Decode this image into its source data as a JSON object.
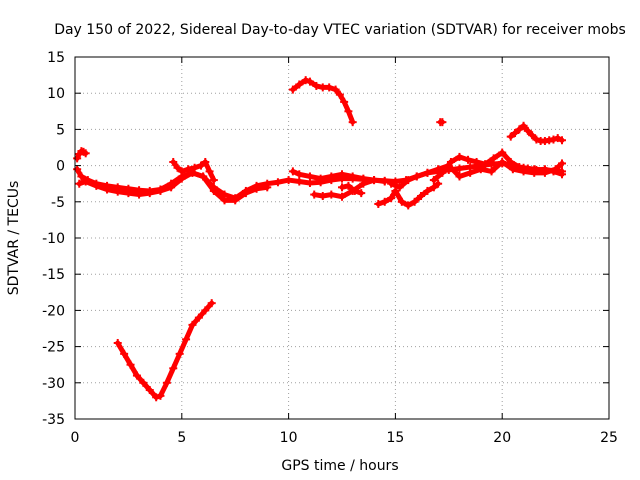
{
  "chart_data": {
    "type": "scatter",
    "title": "Day 150 of 2022, Sidereal Day-to-day VTEC variation (SDTVAR) for receiver mobs",
    "xlabel": "GPS time / hours",
    "ylabel": "SDTVAR / TECUs",
    "xlim": [
      0,
      25
    ],
    "ylim": [
      -35,
      15
    ],
    "x_ticks": [
      0,
      5,
      10,
      15,
      20,
      25
    ],
    "y_ticks": [
      15,
      10,
      5,
      0,
      -5,
      -10,
      -15,
      -20,
      -25,
      -30,
      -35
    ],
    "grid": true,
    "grid_style": "dotted",
    "marker": "+",
    "series": [
      {
        "name": "SDTVAR",
        "color": "#ff0000",
        "tracks": [
          {
            "x": [
              0.1,
              0.2,
              0.3,
              0.4,
              0.5
            ],
            "y": [
              1.0,
              1.6,
              2.0,
              1.9,
              1.7
            ]
          },
          {
            "x": [
              0.1,
              0.3,
              0.6,
              1.0,
              1.5,
              2.0,
              2.5,
              3.0,
              3.5,
              4.0,
              4.5,
              5.0,
              5.5,
              6.0,
              6.5,
              7.0,
              7.5,
              8.0,
              8.5,
              9.0,
              9.5,
              10.0,
              10.5,
              11.0,
              11.5,
              12.0,
              12.5,
              13.0,
              13.5,
              14.0,
              14.5,
              15.0,
              15.5,
              16.0,
              16.5,
              17.0,
              17.5,
              18.0,
              18.5,
              19.0,
              19.5,
              20.0,
              20.5,
              21.0,
              21.5,
              22.0,
              22.5,
              22.8
            ],
            "y": [
              -0.5,
              -1.5,
              -2.0,
              -2.5,
              -2.8,
              -3.0,
              -3.2,
              -3.4,
              -3.5,
              -3.3,
              -2.5,
              -1.5,
              -1.0,
              -1.5,
              -3.0,
              -4.0,
              -4.5,
              -3.5,
              -2.8,
              -2.5,
              -2.3,
              -2.0,
              -2.2,
              -2.4,
              -2.3,
              -2.0,
              -1.8,
              -1.8,
              -1.9,
              -2.0,
              -2.1,
              -2.2,
              -2.0,
              -1.5,
              -1.0,
              -0.8,
              -0.6,
              -0.4,
              -0.2,
              0.0,
              0.2,
              0.3,
              0.0,
              -0.3,
              -0.5,
              -0.6,
              -0.7,
              -0.8
            ]
          },
          {
            "x": [
              0.2,
              0.5,
              1.0,
              1.5,
              2.0,
              2.5,
              3.0,
              3.5,
              4.0,
              4.5,
              5.0,
              5.5,
              6.0,
              6.5,
              7.0,
              7.5,
              8.0,
              8.5,
              9.0
            ],
            "y": [
              -2.5,
              -2.2,
              -2.8,
              -3.3,
              -3.6,
              -3.8,
              -4.0,
              -3.8,
              -3.5,
              -3.0,
              -1.8,
              -1.0,
              -1.5,
              -3.5,
              -4.8,
              -4.8,
              -3.8,
              -3.2,
              -3.0
            ]
          },
          {
            "x": [
              4.6,
              4.8,
              5.0,
              5.3,
              5.6,
              5.9,
              6.1,
              6.3,
              6.5
            ],
            "y": [
              0.5,
              -0.3,
              -0.8,
              -0.5,
              -0.3,
              0.0,
              0.5,
              -0.8,
              -2.0
            ]
          },
          {
            "x": [
              2.0,
              2.3,
              2.6,
              2.9,
              3.2,
              3.5,
              3.8,
              4.0,
              4.3,
              4.6,
              4.9,
              5.2,
              5.5,
              5.8,
              6.1,
              6.4
            ],
            "y": [
              -24.5,
              -26.0,
              -27.5,
              -29.0,
              -30.0,
              -31.0,
              -32.0,
              -31.8,
              -30.0,
              -28.0,
              -26.0,
              -24.0,
              -22.0,
              -21.0,
              -20.0,
              -19.0
            ]
          },
          {
            "x": [
              10.2,
              10.5,
              10.8,
              11.0,
              11.3,
              11.6,
              11.9,
              12.2,
              12.4,
              12.6,
              12.8,
              13.0
            ],
            "y": [
              10.5,
              11.2,
              11.8,
              11.6,
              11.0,
              10.8,
              10.8,
              10.5,
              9.8,
              8.8,
              7.5,
              6.0
            ]
          },
          {
            "x": [
              10.2,
              10.5,
              11.0,
              11.5,
              12.0,
              12.5,
              13.0,
              13.5,
              14.0,
              14.5
            ],
            "y": [
              -0.8,
              -1.2,
              -1.5,
              -1.8,
              -1.5,
              -1.2,
              -1.5,
              -1.8,
              -2.0,
              -2.2
            ]
          },
          {
            "x": [
              11.2,
              11.6,
              12.0,
              12.5,
              13.0,
              13.5,
              14.0
            ],
            "y": [
              -4.0,
              -4.2,
              -4.0,
              -4.3,
              -3.5,
              -2.5,
              -2.0
            ]
          },
          {
            "x": [
              12.5,
              12.8,
              13.1,
              13.4
            ],
            "y": [
              -3.0,
              -2.8,
              -3.5,
              -3.8
            ]
          },
          {
            "x": [
              14.2,
              14.5,
              14.8,
              15.0,
              15.3,
              15.6,
              15.9,
              16.2,
              16.5,
              16.8,
              17.0
            ],
            "y": [
              -5.3,
              -5.0,
              -4.5,
              -3.5,
              -5.0,
              -5.5,
              -5.0,
              -4.2,
              -3.5,
              -3.0,
              -2.5
            ]
          },
          {
            "x": [
              14.8,
              15.2,
              15.6,
              16.0,
              16.5,
              17.0,
              17.5,
              18.0,
              18.5,
              19.0,
              19.5,
              20.0,
              20.5,
              21.0,
              21.5,
              22.0,
              22.5,
              22.8
            ],
            "y": [
              -2.5,
              -3.0,
              -2.0,
              -1.5,
              -1.0,
              -0.5,
              0.0,
              -1.5,
              -1.0,
              -0.5,
              -0.8,
              0.5,
              -0.5,
              -0.8,
              -1.0,
              -1.0,
              -0.5,
              0.3
            ]
          },
          {
            "x": [
              16.8,
              17.2,
              17.6,
              18.0,
              18.4,
              18.8,
              19.2,
              19.6,
              20.0,
              20.4,
              20.8,
              21.2,
              21.6,
              22.0,
              22.4,
              22.8
            ],
            "y": [
              -2.0,
              -1.0,
              0.5,
              1.2,
              0.8,
              0.5,
              0.2,
              1.0,
              1.8,
              0.5,
              -0.2,
              -0.4,
              -0.6,
              -0.5,
              -0.8,
              -1.2
            ]
          },
          {
            "x": [
              17.1,
              17.2
            ],
            "y": [
              6.0,
              6.0
            ]
          },
          {
            "x": [
              20.4,
              20.6,
              20.8,
              21.0,
              21.2,
              21.4,
              21.6,
              21.8,
              22.0,
              22.2,
              22.4,
              22.6,
              22.8
            ],
            "y": [
              4.0,
              4.5,
              5.0,
              5.5,
              4.8,
              4.2,
              3.6,
              3.4,
              3.4,
              3.5,
              3.6,
              3.8,
              3.5
            ]
          }
        ]
      }
    ]
  }
}
